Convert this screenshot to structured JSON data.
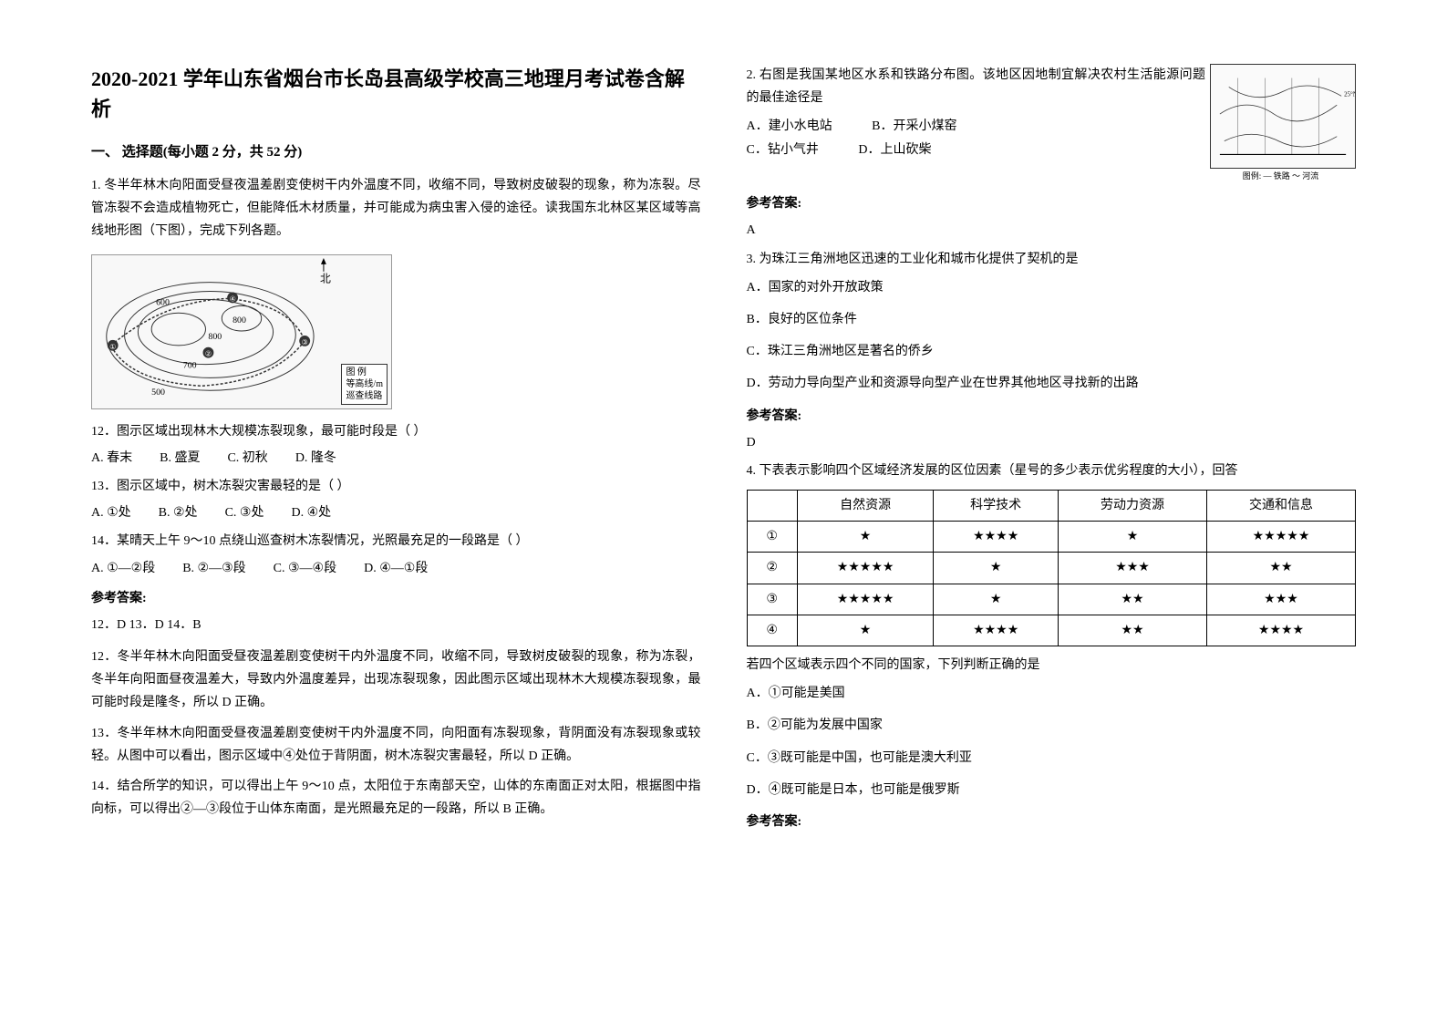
{
  "title": "2020-2021 学年山东省烟台市长岛县高级学校高三地理月考试卷含解析",
  "section1": "一、 选择题(每小题 2 分，共 52 分)",
  "q1_intro": "1. 冬半年林木向阳面受昼夜温差剧变使树干内外温度不同，收缩不同，导致树皮破裂的现象，称为冻裂。尽管冻裂不会造成植物死亡，但能降低木材质量，并可能成为病虫害入侵的途径。读我国东北林区某区域等高线地形图（下图），完成下列各题。",
  "diagram": {
    "contours": [
      "500",
      "600",
      "700",
      "800"
    ],
    "north_label": "北",
    "legend": [
      "图 例",
      "等高线/m",
      "巡查线路"
    ]
  },
  "q12": "12．图示区域出现林木大规模冻裂现象，最可能时段是（     ）",
  "q12_opts": {
    "A": "A. 春末",
    "B": "B. 盛夏",
    "C": "C. 初秋",
    "D": "D. 隆冬"
  },
  "q13": "13．图示区域中，树木冻裂灾害最轻的是（     ）",
  "q13_opts": {
    "A": "A. ①处",
    "B": "B. ②处",
    "C": "C. ③处",
    "D": "D. ④处"
  },
  "q14": "14．某晴天上午 9～10 点绕山巡查树木冻裂情况，光照最充足的一段路是（     ）",
  "q14_opts": {
    "A": "A. ①—②段",
    "B": "B. ②—③段",
    "C": "C. ③—④段",
    "D": "D. ④—①段"
  },
  "ans_heading": "参考答案:",
  "ans_12_14": "12．D     13．D     14．B",
  "explain12": "12．冬半年林木向阳面受昼夜温差剧变使树干内外温度不同，收缩不同，导致树皮破裂的现象，称为冻裂，冬半年向阳面昼夜温差大，导致内外温度差异，出现冻裂现象，因此图示区域出现林木大规模冻裂现象，最可能时段是隆冬，所以 D 正确。",
  "explain13": "13．冬半年林木向阳面受昼夜温差剧变使树干内外温度不同，向阳面有冻裂现象，背阴面没有冻裂现象或较轻。从图中可以看出，图示区域中④处位于背阴面，树木冻裂灾害最轻，所以 D 正确。",
  "explain14": "14．结合所学的知识，可以得出上午 9～10 点，太阳位于东南部天空，山体的东南面正对太阳，根据图中指向标，可以得出②—③段位于山体东南面，是光照最充足的一段路，所以 B 正确。",
  "q2_text": "2. 右图是我国某地区水系和铁路分布图。该地区因地制宜解决农村生活能源问题的最佳途径是",
  "q2_opts": {
    "A": "A．建小水电站",
    "B": "B．开采小煤窑",
    "C": "C．钻小气井",
    "D": "D．上山砍柴"
  },
  "q2_answer": "A",
  "map_legend": "图例: — 铁路  ～ 河流",
  "q3_text": "3. 为珠江三角洲地区迅速的工业化和城市化提供了契机的是",
  "q3_opts": {
    "A": "A．国家的对外开放政策",
    "B": "B．良好的区位条件",
    "C": "C．珠江三角洲地区是著名的侨乡",
    "D": "D．劳动力导向型产业和资源导向型产业在世界其他地区寻找新的出路"
  },
  "q3_answer": "D",
  "q4_text": "4. 下表表示影响四个区域经济发展的区位因素（星号的多少表示优劣程度的大小），回答",
  "table": {
    "headers": [
      "",
      "自然资源",
      "科学技术",
      "劳动力资源",
      "交通和信息"
    ],
    "rows": [
      [
        "①",
        "★",
        "★★★★",
        "★",
        "★★★★★"
      ],
      [
        "②",
        "★★★★★",
        "★",
        "★★★",
        "★★"
      ],
      [
        "③",
        "★★★★★",
        "★",
        "★★",
        "★★★"
      ],
      [
        "④",
        "★",
        "★★★★",
        "★★",
        "★★★★"
      ]
    ]
  },
  "q4_sub": "若四个区域表示四个不同的国家，下列判断正确的是",
  "q4_opts": {
    "A": "A．①可能是美国",
    "B": "B．②可能为发展中国家",
    "C": "C．③既可能是中国，也可能是澳大利亚",
    "D": "D．④既可能是日本，也可能是俄罗斯"
  }
}
